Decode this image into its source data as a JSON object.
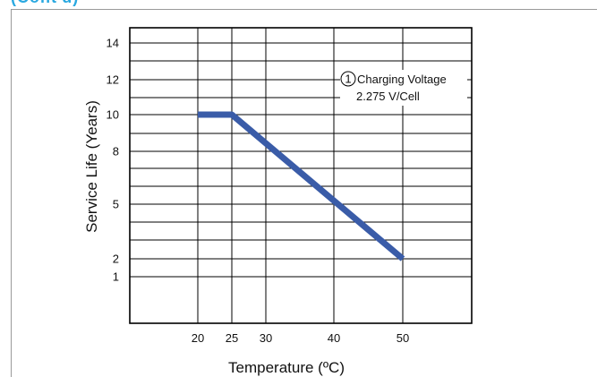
{
  "page": {
    "header_fragment": "(Cont'd)",
    "accent_color": "#29a8e0"
  },
  "chart_data": {
    "type": "line",
    "title": "",
    "xlabel": "Temperature (ºC)",
    "ylabel": "Service Life (Years)",
    "x_ticks": [
      20,
      25,
      30,
      40,
      50
    ],
    "y_ticks": [
      1,
      2,
      5,
      8,
      10,
      12,
      14
    ],
    "series": [
      {
        "x": [
          20,
          25,
          50
        ],
        "y": [
          10,
          10,
          2
        ],
        "color": "#3a5ca8"
      }
    ],
    "annotation": {
      "marker": "1",
      "line1": "Charging Voltage",
      "line2": "2.275 V/Cell"
    },
    "grid": true,
    "legend": "none"
  }
}
